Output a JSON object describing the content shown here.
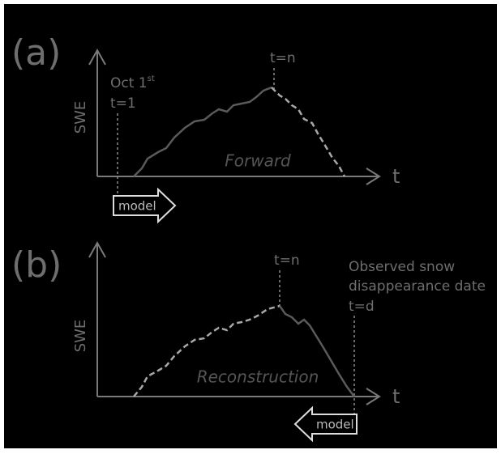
{
  "panel_a": {
    "label": "(a)",
    "y_axis_label": "SWE",
    "x_axis_label": "t",
    "start_date": "Oct 1",
    "start_date_suffix": "st",
    "start_step": "t=1",
    "peak_step": "t=n",
    "curve_label": "Forward",
    "direction_label": "model"
  },
  "panel_b": {
    "label": "(b)",
    "y_axis_label": "SWE",
    "x_axis_label": "t",
    "peak_step": "t=n",
    "observed_lines": [
      "Observed snow",
      "disappearance date"
    ],
    "end_step": "t=d",
    "curve_label": "Reconstruction",
    "direction_label": "model"
  }
}
